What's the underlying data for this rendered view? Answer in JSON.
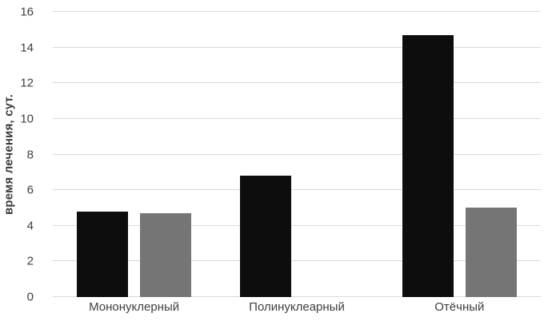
{
  "chart_data": {
    "type": "bar",
    "title": "",
    "ylabel": "время лечения, сут.",
    "xlabel": "",
    "categories": [
      "Мононуклерный",
      "Полинуклеарный",
      "Отёчный"
    ],
    "series": [
      {
        "name": "series-black",
        "color": "#0d0d0d",
        "values": [
          4.8,
          6.8,
          14.7
        ]
      },
      {
        "name": "series-gray",
        "color": "#757575",
        "values": [
          4.7,
          null,
          5.0
        ]
      }
    ],
    "ylim": [
      0,
      16
    ],
    "ytick_step": 2,
    "yticks": [
      0,
      2,
      4,
      6,
      8,
      10,
      12,
      14,
      16
    ],
    "grid": true,
    "legend": "none",
    "colors": {
      "grid": "#d9d9d9",
      "tick_text": "#404040",
      "axis_title_text": "#3a3a3a",
      "background": "#ffffff"
    }
  }
}
